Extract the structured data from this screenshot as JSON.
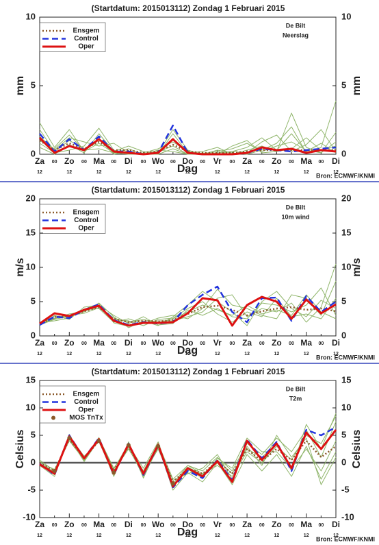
{
  "chart_data": [
    {
      "type": "line",
      "title": "(Startdatum: 2015013112)   Zondag     1 Februari  2015",
      "location": "De Bilt",
      "variable": "Neerslag",
      "ylabel": "mm",
      "xlabel": "Dag",
      "source": "Bron: ECMWF/KNMI",
      "ylim": [
        0,
        10
      ],
      "yticks": [
        0,
        5,
        10
      ],
      "legend": "upper left",
      "categories": [
        "Za",
        "00",
        "Zo",
        "00",
        "Ma",
        "00",
        "Di",
        "00",
        "Wo",
        "00",
        "Do",
        "00",
        "Vr",
        "00",
        "Za",
        "00",
        "Zo",
        "00",
        "Ma",
        "00",
        "Di"
      ],
      "category_sublabels": [
        "12",
        null,
        "12",
        null,
        "12",
        null,
        "12",
        null,
        "12",
        null,
        "12",
        null,
        "12",
        null,
        "12",
        null,
        "12",
        null,
        "12",
        null,
        "12"
      ],
      "members": {
        "color": "#8fb56a",
        "values": [
          [
            2.3,
            0.5,
            1.8,
            0.2,
            0.8,
            0.1,
            0.4,
            0,
            0.2,
            0.6,
            0,
            0.1,
            0,
            0.2,
            0.5,
            1.2,
            0.3,
            1.5,
            0.2,
            0.8,
            0.1
          ],
          [
            0.8,
            0.1,
            0.3,
            0.6,
            1.9,
            0.3,
            0,
            0.1,
            0.4,
            0.9,
            0.2,
            0,
            0.3,
            0.1,
            0,
            0.3,
            0.8,
            2.0,
            0.1,
            0.5,
            3.9
          ],
          [
            1.3,
            0.3,
            1.2,
            0.9,
            0.6,
            0.8,
            0.1,
            0,
            0,
            1.5,
            0.1,
            0.2,
            0.5,
            0,
            0.3,
            0.6,
            0.2,
            0.4,
            1.2,
            0.3,
            0.6
          ],
          [
            0.5,
            0,
            0.7,
            0.1,
            1.5,
            0.2,
            0.6,
            0.2,
            0,
            0.4,
            0,
            0.1,
            0,
            0.6,
            1.0,
            0.1,
            0.2,
            3.0,
            0.5,
            0.1,
            0.9
          ],
          [
            1.8,
            0.2,
            1.0,
            0.4,
            1.1,
            0,
            0.2,
            0,
            0.1,
            1.8,
            0.3,
            0,
            0.1,
            0.2,
            0.1,
            0.9,
            1.4,
            0.2,
            0.7,
            1.8,
            0.2
          ],
          [
            1.0,
            0.4,
            1.4,
            0.3,
            0.4,
            0.1,
            0,
            0,
            0.3,
            0.2,
            0,
            0,
            0.2,
            0.4,
            0.8,
            0.2,
            0.6,
            0.9,
            0.3,
            0.1,
            1.6
          ]
        ]
      },
      "series": [
        {
          "name": "Ensgem",
          "color": "#8b5a2b",
          "dash": "dotted",
          "values": [
            1.0,
            0.3,
            0.8,
            0.4,
            0.9,
            0.3,
            0.3,
            0.1,
            0.2,
            0.7,
            0.2,
            0.1,
            0.1,
            0.1,
            0.2,
            0.3,
            0.3,
            0.3,
            0.3,
            0.3,
            0.3
          ]
        },
        {
          "name": "Control",
          "color": "#2233dd",
          "dash": "dashed",
          "values": [
            1.5,
            0.2,
            1.1,
            0.3,
            1.3,
            0.2,
            0.2,
            0,
            0.1,
            2.1,
            0.1,
            0,
            0,
            0,
            0.1,
            0.4,
            0.3,
            0.2,
            0.3,
            0.4,
            0.5
          ]
        },
        {
          "name": "Oper",
          "color": "#dd1111",
          "dash": "solid",
          "values": [
            1.2,
            0.1,
            0.6,
            0.3,
            1.1,
            0.2,
            0.1,
            0,
            0.1,
            1.1,
            0.1,
            0,
            0,
            0,
            0.1,
            0.5,
            0.3,
            0.4,
            0.1,
            0.3,
            0.2
          ]
        }
      ]
    },
    {
      "type": "line",
      "title": "(Startdatum: 2015013112)   Zondag     1 Februari  2015",
      "location": "De Bilt",
      "variable": "10m wind",
      "ylabel": "m/s",
      "xlabel": "Dag",
      "source": "Bron: ECMWF/KNMI",
      "ylim": [
        0,
        20
      ],
      "yticks": [
        0,
        5,
        10,
        15,
        20
      ],
      "legend": "upper left",
      "categories": [
        "Za",
        "00",
        "Zo",
        "00",
        "Ma",
        "00",
        "Di",
        "00",
        "Wo",
        "00",
        "Do",
        "00",
        "Vr",
        "00",
        "Za",
        "00",
        "Zo",
        "00",
        "Ma",
        "00",
        "Di"
      ],
      "category_sublabels": [
        "12",
        null,
        "12",
        null,
        "12",
        null,
        "12",
        null,
        "12",
        null,
        "12",
        null,
        "12",
        null,
        "12",
        null,
        "12",
        null,
        "12",
        null,
        "12"
      ],
      "members": {
        "color": "#8fb56a",
        "values": [
          [
            1.6,
            2.5,
            3.2,
            3.5,
            4.8,
            2.8,
            1.2,
            2.2,
            1.5,
            2.8,
            4.5,
            6.5,
            5.0,
            3.5,
            1.5,
            5.0,
            6.5,
            4.0,
            2.8,
            5.2,
            4.0
          ],
          [
            1.9,
            2.2,
            2.6,
            3.8,
            4.0,
            2.0,
            2.5,
            1.8,
            2.6,
            3.0,
            2.5,
            4.0,
            6.8,
            4.5,
            4.0,
            3.0,
            2.5,
            6.0,
            5.5,
            3.0,
            8.0
          ],
          [
            1.5,
            3.0,
            2.4,
            4.2,
            4.5,
            3.0,
            1.8,
            2.8,
            1.6,
            1.8,
            3.8,
            3.0,
            4.0,
            2.8,
            2.5,
            4.8,
            4.5,
            3.5,
            4.5,
            7.0,
            3.0
          ],
          [
            1.7,
            2.6,
            3.0,
            3.3,
            4.1,
            2.4,
            2.2,
            1.5,
            2.4,
            2.6,
            4.0,
            5.0,
            3.2,
            2.0,
            3.5,
            2.8,
            5.5,
            2.8,
            3.2,
            2.5,
            5.5
          ],
          [
            1.8,
            2.9,
            2.8,
            3.9,
            4.7,
            1.9,
            1.4,
            2.0,
            2.2,
            2.2,
            2.8,
            3.5,
            5.5,
            6.0,
            2.8,
            4.0,
            3.5,
            4.8,
            2.0,
            4.2,
            10.5
          ],
          [
            1.6,
            2.4,
            2.9,
            3.6,
            4.3,
            2.6,
            2.0,
            2.4,
            1.9,
            2.5,
            3.5,
            4.5,
            3.8,
            3.0,
            4.5,
            3.2,
            3.8,
            3.0,
            6.0,
            3.5,
            2.5
          ]
        ]
      },
      "series": [
        {
          "name": "Ensgem",
          "color": "#8b5a2b",
          "dash": "dotted",
          "values": [
            1.7,
            2.8,
            2.8,
            3.6,
            4.2,
            2.5,
            2.0,
            2.2,
            2.1,
            2.3,
            3.2,
            4.2,
            4.4,
            3.8,
            3.0,
            3.6,
            4.0,
            4.2,
            3.8,
            4.0,
            3.6
          ]
        },
        {
          "name": "Control",
          "color": "#2233dd",
          "dash": "dashed",
          "values": [
            1.6,
            2.8,
            2.6,
            3.8,
            4.6,
            2.3,
            1.6,
            2.0,
            1.8,
            2.0,
            4.5,
            6.0,
            7.2,
            3.5,
            2.0,
            5.5,
            5.6,
            2.2,
            5.8,
            3.5,
            5.0
          ]
        },
        {
          "name": "Oper",
          "color": "#dd1111",
          "dash": "solid",
          "values": [
            1.8,
            3.3,
            2.9,
            3.8,
            4.4,
            2.2,
            1.5,
            1.9,
            1.9,
            2.0,
            3.3,
            5.5,
            5.2,
            1.5,
            4.5,
            5.7,
            5.0,
            2.5,
            5.3,
            3.3,
            4.6
          ]
        }
      ]
    },
    {
      "type": "line",
      "title": "(Startdatum: 2015013112)   Zondag     1 Februari  2015",
      "location": "De Bilt",
      "variable": "T2m",
      "ylabel": "Celsius",
      "xlabel": "Dag",
      "source": "Bron: ECMWF/KNMI",
      "ylim": [
        -10,
        15
      ],
      "yticks": [
        -10,
        -5,
        0,
        5,
        10,
        15
      ],
      "legend": "upper left",
      "zero_line": true,
      "categories": [
        "Za",
        "00",
        "Zo",
        "00",
        "Ma",
        "00",
        "Di",
        "00",
        "Wo",
        "00",
        "Do",
        "00",
        "Vr",
        "00",
        "Za",
        "00",
        "Zo",
        "00",
        "Ma",
        "00",
        "Di"
      ],
      "category_sublabels": [
        "12",
        null,
        "12",
        null,
        "12",
        null,
        "12",
        null,
        "12",
        null,
        "12",
        null,
        "12",
        null,
        "12",
        null,
        "12",
        null,
        "12",
        null,
        "12"
      ],
      "members": {
        "color": "#8fb56a",
        "values": [
          [
            0.5,
            -1.5,
            4.0,
            0.5,
            4.5,
            -1.0,
            3.0,
            -1.5,
            3.5,
            -3.0,
            -0.5,
            -1.5,
            1.0,
            -1.5,
            3.5,
            1.5,
            4.5,
            2.0,
            6.0,
            1.0,
            7.5
          ],
          [
            -0.5,
            -2.5,
            5.0,
            1.0,
            4.0,
            -2.5,
            3.8,
            -2.8,
            3.0,
            -5.0,
            -1.8,
            -3.5,
            0.0,
            -4.0,
            1.5,
            -1.5,
            1.5,
            -2.5,
            3.0,
            -3.0,
            2.0
          ],
          [
            0.2,
            -1.8,
            4.5,
            0.2,
            4.2,
            -1.5,
            2.5,
            -2.0,
            2.5,
            -3.8,
            -0.5,
            -2.0,
            -0.5,
            -2.5,
            2.0,
            0.0,
            3.0,
            0.5,
            5.0,
            3.5,
            8.5
          ],
          [
            -0.3,
            -2.2,
            4.8,
            1.2,
            3.8,
            -2.0,
            3.2,
            -1.0,
            3.8,
            -4.0,
            -1.2,
            -2.8,
            0.8,
            -1.0,
            4.5,
            2.0,
            2.0,
            -1.0,
            2.5,
            -1.5,
            4.0
          ],
          [
            0.0,
            -1.2,
            4.2,
            0.8,
            4.6,
            -1.8,
            2.8,
            -2.5,
            2.8,
            -3.2,
            -2.0,
            -1.0,
            1.5,
            -3.0,
            3.0,
            -0.5,
            5.0,
            1.0,
            4.5,
            -4.0,
            1.0
          ],
          [
            0.3,
            -2.0,
            5.2,
            0.4,
            4.4,
            -1.2,
            3.5,
            -1.8,
            3.2,
            -4.2,
            -0.8,
            -2.2,
            0.5,
            -2.0,
            2.5,
            1.0,
            3.5,
            -1.5,
            7.0,
            2.5,
            9.0
          ]
        ]
      },
      "series": [
        {
          "name": "Ensgem",
          "color": "#8b5a2b",
          "dash": "dotted",
          "values": [
            0,
            -1.5,
            4.3,
            0.8,
            4.0,
            -1.5,
            3.0,
            -1.8,
            3.0,
            -3.5,
            -1.0,
            -2.0,
            0.3,
            -2.0,
            2.5,
            0.3,
            2.5,
            0.5,
            4.0,
            1.0,
            3.0
          ]
        },
        {
          "name": "Control",
          "color": "#2233dd",
          "dash": "dashed",
          "values": [
            -0.2,
            -2.2,
            5.0,
            0.8,
            4.5,
            -2.2,
            3.5,
            -2.2,
            3.2,
            -4.5,
            -1.5,
            -2.8,
            0.5,
            -3.2,
            4.2,
            0.8,
            3.8,
            -1.5,
            6.0,
            5.0,
            6.5
          ]
        },
        {
          "name": "Oper",
          "color": "#dd1111",
          "dash": "solid",
          "values": [
            -0.3,
            -2.0,
            4.8,
            0.8,
            4.3,
            -2.0,
            3.4,
            -2.0,
            3.3,
            -4.3,
            -1.0,
            -2.5,
            0.3,
            -3.5,
            4.0,
            0.5,
            3.5,
            -1.0,
            5.5,
            2.5,
            6.0
          ]
        },
        {
          "name": "MOS TnTx",
          "color": "#8b5a2b",
          "dash": "dots",
          "values": [
            null,
            -1.5,
            4.5,
            null,
            4.0,
            -1.8,
            3.2,
            null,
            3.0,
            -3.8,
            null,
            null,
            null,
            null,
            null,
            null,
            null,
            null,
            null,
            null,
            null
          ]
        }
      ]
    }
  ]
}
